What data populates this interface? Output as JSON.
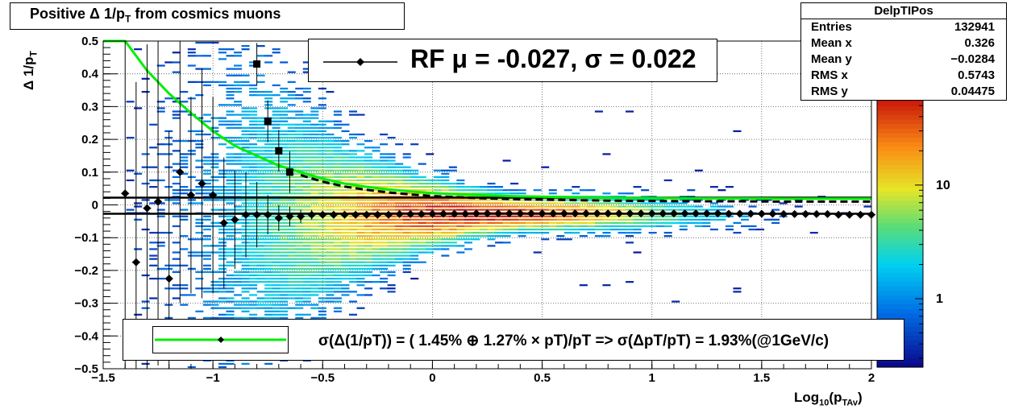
{
  "title": {
    "text": "Positive Δ 1/p",
    "subscript": "T",
    "suffix": " from cosmics muons"
  },
  "stats": {
    "name": "DelpTIPos",
    "rows": [
      {
        "label": "Entries",
        "value": "132941"
      },
      {
        "label": "Mean x",
        "value": "0.326"
      },
      {
        "label": "Mean y",
        "value": "−0.0284"
      },
      {
        "label": "RMS x",
        "value": "0.5743"
      },
      {
        "label": "RMS y",
        "value": "0.04475"
      }
    ]
  },
  "fit_legend": {
    "text": "RF μ = -0.027, σ =   0.022"
  },
  "res_legend": {
    "text": "σ(Δ(1/pT)) = ( 1.45% ⊕  1.27% × pT)/pT => σ(ΔpT/pT) =  1.93%(@1GeV/c)"
  },
  "axes": {
    "xlabel": "Log",
    "xlabel_sub1": "10",
    "xlabel_mid": "(p",
    "xlabel_sub2": "TAv",
    "xlabel_end": ")",
    "ylabel": "Δ 1/p",
    "ylabel_sub": "T"
  },
  "colors": {
    "fit_curve": "#00ee00",
    "markers": "#000000",
    "palette_low": "#0a0a8c",
    "palette_high": "#cc1010"
  },
  "chart_data": {
    "type": "heatmap",
    "xlim": [
      -1.5,
      2.0
    ],
    "ylim": [
      -0.5,
      0.5
    ],
    "x_ticks": [
      "−1.5",
      "−1",
      "−0.5",
      "0",
      "0.5",
      "1",
      "1.5",
      "2"
    ],
    "x_tick_values": [
      -1.5,
      -1,
      -0.5,
      0,
      0.5,
      1,
      1.5,
      2
    ],
    "y_ticks": [
      "0.5",
      "0.4",
      "0.3",
      "0.2",
      "0.1",
      "0",
      "−0.1",
      "−0.2",
      "−0.3",
      "−0.4",
      "−0.5"
    ],
    "y_tick_values": [
      0.5,
      0.4,
      0.3,
      0.2,
      0.1,
      0,
      -0.1,
      -0.2,
      -0.3,
      -0.4,
      -0.5
    ],
    "grid": true,
    "z_scale": "log",
    "z_ticks": [
      "10",
      "1"
    ],
    "z_tick_values": [
      10,
      1
    ],
    "zlim": [
      0.25,
      60
    ],
    "mean_points": {
      "x": [
        -1.4,
        -1.35,
        -1.3,
        -1.25,
        -1.2,
        -1.15,
        -1.1,
        -1.05,
        -1.0,
        -0.95,
        -0.9,
        -0.85,
        -0.8,
        -0.75,
        -0.7,
        -0.65,
        -0.6,
        -0.55,
        -0.5,
        -0.45,
        -0.4,
        -0.35,
        -0.3,
        -0.25,
        -0.2,
        -0.15,
        -0.1,
        -0.05,
        0.0,
        0.05,
        0.1,
        0.15,
        0.2,
        0.25,
        0.3,
        0.35,
        0.4,
        0.45,
        0.5,
        0.55,
        0.6,
        0.65,
        0.7,
        0.75,
        0.8,
        0.85,
        0.9,
        0.95,
        1.0,
        1.05,
        1.1,
        1.15,
        1.2,
        1.25,
        1.3,
        1.35,
        1.4,
        1.45,
        1.5,
        1.55,
        1.6,
        1.65,
        1.7,
        1.75,
        1.8,
        1.85,
        1.9,
        1.95,
        2.0
      ],
      "y": [
        0.035,
        -0.175,
        -0.01,
        0.01,
        -0.225,
        0.1,
        0.03,
        0.065,
        0.03,
        -0.055,
        -0.045,
        -0.03,
        -0.03,
        -0.03,
        -0.04,
        -0.035,
        -0.035,
        -0.03,
        -0.03,
        -0.03,
        -0.03,
        -0.03,
        -0.03,
        -0.03,
        -0.03,
        -0.028,
        -0.028,
        -0.028,
        -0.027,
        -0.027,
        -0.027,
        -0.027,
        -0.026,
        -0.026,
        -0.026,
        -0.026,
        -0.026,
        -0.026,
        -0.026,
        -0.026,
        -0.026,
        -0.026,
        -0.026,
        -0.026,
        -0.026,
        -0.026,
        -0.026,
        -0.026,
        -0.026,
        -0.026,
        -0.026,
        -0.026,
        -0.026,
        -0.026,
        -0.026,
        -0.027,
        -0.027,
        -0.027,
        -0.027,
        -0.027,
        -0.028,
        -0.028,
        -0.028,
        -0.028,
        -0.028,
        -0.03,
        -0.03,
        -0.03,
        -0.03
      ],
      "yerr": [
        0.6,
        0.55,
        0.5,
        0.5,
        0.45,
        0.4,
        0.3,
        0.35,
        0.3,
        0.2,
        0.15,
        0.13,
        0.1,
        0.06,
        0.04,
        0.03,
        0.02,
        0.015,
        0.01,
        0.01,
        0.01,
        0.01,
        0.01,
        0.01,
        0.01,
        0.01,
        0.01,
        0.01,
        0.01,
        0.01,
        0.01,
        0.01,
        0.01,
        0.01,
        0.01,
        0.01,
        0.01,
        0.01,
        0.01,
        0.01,
        0.01,
        0.01,
        0.01,
        0.01,
        0.01,
        0.01,
        0.01,
        0.01,
        0.01,
        0.01,
        0.01,
        0.01,
        0.01,
        0.01,
        0.01,
        0.01,
        0.01,
        0.01,
        0.01,
        0.01,
        0.01,
        0.01,
        0.01,
        0.01,
        0.01,
        0.01,
        0.01,
        0.01,
        0.01
      ]
    },
    "width_points": {
      "x": [
        -0.8,
        -0.75,
        -0.7,
        -0.65
      ],
      "y": [
        0.43,
        0.255,
        0.165,
        0.1
      ]
    },
    "sigma_line": {
      "x": [
        -1.5,
        -1.4,
        -1.3,
        -1.2,
        -1.1,
        -1.0,
        -0.9,
        -0.8,
        -0.7,
        -0.6,
        -0.5,
        -0.4,
        -0.3,
        -0.2,
        -0.1,
        0.0,
        0.2,
        0.4,
        0.6,
        0.8,
        1.0,
        1.2,
        1.4,
        1.6,
        1.8,
        2.0
      ],
      "y": [
        0.5,
        0.5,
        0.41,
        0.34,
        0.28,
        0.225,
        0.18,
        0.15,
        0.12,
        0.1,
        0.08,
        0.065,
        0.055,
        0.047,
        0.041,
        0.036,
        0.03,
        0.026,
        0.024,
        0.022,
        0.021,
        0.02,
        0.02,
        0.019,
        0.019,
        0.019
      ]
    },
    "fit_lines": [
      {
        "x": [
          -1.5,
          2.0
        ],
        "y": [
          0.022,
          0.022
        ]
      },
      {
        "x": [
          -1.5,
          2.0
        ],
        "y": [
          -0.027,
          -0.027
        ]
      }
    ]
  }
}
